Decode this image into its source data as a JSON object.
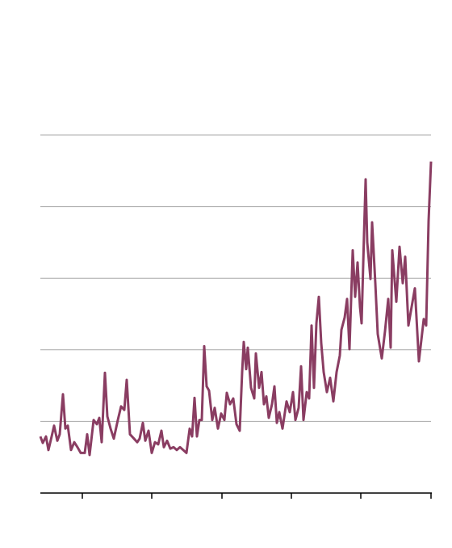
{
  "chart_data": {
    "type": "line",
    "xlim": [
      0,
      484
    ],
    "xticks": [
      52,
      138,
      225,
      311,
      397,
      484
    ],
    "ylim": [
      0,
      5
    ],
    "yticks": [
      0,
      1,
      2,
      3,
      4,
      5
    ],
    "grid": true,
    "series": [
      {
        "color": "#8a3d62",
        "x": [
          0,
          3,
          7,
          10,
          14,
          17,
          21,
          24,
          28,
          31,
          34,
          38,
          42,
          46,
          50,
          55,
          58,
          61,
          66,
          70,
          73,
          76,
          80,
          83,
          87,
          91,
          96,
          100,
          104,
          107,
          111,
          116,
          120,
          123,
          127,
          130,
          134,
          138,
          142,
          146,
          150,
          153,
          157,
          161,
          165,
          169,
          173,
          177,
          181,
          185,
          188,
          191,
          194,
          197,
          200,
          203,
          206,
          209,
          213,
          216,
          220,
          224,
          228,
          231,
          235,
          239,
          243,
          247,
          250,
          252,
          255,
          257,
          261,
          265,
          267,
          271,
          274,
          277,
          280,
          283,
          287,
          290,
          293,
          296,
          300,
          305,
          309,
          313,
          316,
          320,
          323,
          326,
          330,
          333,
          336,
          339,
          342,
          345,
          348,
          351,
          355,
          359,
          363,
          367,
          371,
          373,
          377,
          380,
          383,
          387,
          390,
          393,
          396,
          398,
          401,
          403,
          405,
          409,
          411,
          415,
          418,
          423,
          427,
          431,
          434,
          436,
          441,
          445,
          449,
          452,
          456,
          460,
          464,
          469,
          475,
          478,
          481,
          484
        ],
        "values": [
          0.79,
          0.7,
          0.79,
          0.6,
          0.79,
          0.94,
          0.73,
          0.82,
          1.38,
          0.9,
          0.94,
          0.6,
          0.71,
          0.64,
          0.56,
          0.56,
          0.82,
          0.53,
          1.02,
          0.96,
          1.05,
          0.71,
          1.68,
          1.07,
          0.9,
          0.76,
          1.02,
          1.21,
          1.16,
          1.58,
          0.82,
          0.76,
          0.71,
          0.76,
          0.98,
          0.73,
          0.87,
          0.56,
          0.71,
          0.68,
          0.87,
          0.64,
          0.73,
          0.62,
          0.64,
          0.6,
          0.64,
          0.6,
          0.56,
          0.9,
          0.79,
          1.33,
          0.79,
          1.02,
          1.02,
          2.05,
          1.49,
          1.43,
          1.02,
          1.19,
          0.9,
          1.11,
          1.02,
          1.4,
          1.24,
          1.32,
          0.96,
          0.87,
          1.69,
          2.11,
          1.73,
          2.03,
          1.47,
          1.32,
          1.95,
          1.47,
          1.69,
          1.24,
          1.35,
          1.05,
          1.24,
          1.49,
          0.98,
          1.13,
          0.9,
          1.28,
          1.13,
          1.41,
          1.02,
          1.19,
          1.77,
          1.02,
          1.41,
          1.32,
          2.34,
          1.47,
          2.37,
          2.74,
          2.09,
          1.69,
          1.41,
          1.61,
          1.28,
          1.69,
          1.92,
          2.28,
          2.45,
          2.71,
          2.01,
          3.39,
          2.74,
          3.22,
          2.6,
          2.37,
          3.61,
          4.38,
          3.5,
          2.99,
          3.78,
          2.93,
          2.22,
          1.88,
          2.26,
          2.71,
          2.03,
          3.39,
          2.67,
          3.44,
          2.93,
          3.3,
          2.34,
          2.6,
          2.86,
          1.84,
          2.43,
          2.34,
          3.8,
          4.63
        ]
      }
    ]
  }
}
